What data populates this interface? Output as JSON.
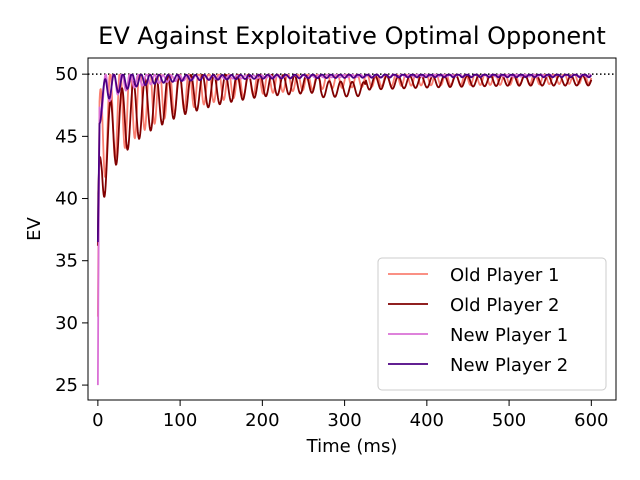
{
  "chart_data": {
    "type": "line",
    "title": "EV Against Exploitative Optimal Opponent",
    "xlabel": "Time (ms)",
    "ylabel": "EV",
    "xlim": [
      -12,
      630
    ],
    "ylim": [
      23.8,
      51.3
    ],
    "xticks": [
      0,
      100,
      200,
      300,
      400,
      500,
      600
    ],
    "yticks": [
      25,
      30,
      35,
      40,
      45,
      50
    ],
    "grid": false,
    "legend_position": "lower-right",
    "reference_line": {
      "y": 50,
      "style": "dotted",
      "color": "#000000"
    },
    "series": [
      {
        "name": "Old Player 1",
        "color": "#fa8072",
        "start": 30.5,
        "oscillation": {
          "period_ms": 12,
          "amplitude_start": 4.5,
          "amplitude_end": 0.45,
          "decay_ms": 90
        },
        "x": [
          0,
          2,
          5,
          10,
          20,
          40,
          60,
          100,
          150,
          200,
          300,
          400,
          500,
          600
        ],
        "y": [
          30.5,
          44.0,
          45.2,
          46.0,
          46.8,
          47.6,
          48.2,
          48.8,
          49.1,
          49.3,
          49.5,
          49.6,
          49.6,
          49.7
        ]
      },
      {
        "name": "Old Player 2",
        "color": "#800000",
        "start": 36.2,
        "oscillation": {
          "period_ms": 14,
          "amplitude_start": 3.5,
          "amplitude_end": 0.4,
          "decay_ms": 110
        },
        "x": [
          0,
          2,
          5,
          10,
          20,
          40,
          60,
          100,
          150,
          200,
          270,
          271,
          325,
          326,
          400,
          500,
          600
        ],
        "y": [
          36.2,
          40.0,
          42.5,
          44.0,
          45.5,
          46.8,
          47.5,
          48.3,
          48.8,
          49.1,
          49.2,
          48.8,
          48.8,
          49.3,
          49.4,
          49.5,
          49.5
        ]
      },
      {
        "name": "New Player 1",
        "color": "#da70d6",
        "start": 25.0,
        "oscillation": {
          "period_ms": 10,
          "amplitude_start": 1.6,
          "amplitude_end": 0.1,
          "decay_ms": 40
        },
        "x": [
          0,
          2,
          5,
          10,
          20,
          40,
          100,
          200,
          300,
          400,
          500,
          600
        ],
        "y": [
          25.0,
          47.5,
          48.3,
          48.8,
          49.2,
          49.5,
          49.7,
          49.8,
          49.85,
          49.9,
          49.9,
          49.9
        ]
      },
      {
        "name": "New Player 2",
        "color": "#4b0082",
        "start": 36.5,
        "oscillation": {
          "period_ms": 11,
          "amplitude_start": 1.2,
          "amplitude_end": 0.15,
          "decay_ms": 45
        },
        "x": [
          0,
          2,
          5,
          10,
          20,
          40,
          100,
          200,
          300,
          400,
          500,
          600
        ],
        "y": [
          36.5,
          47.0,
          48.0,
          48.8,
          49.2,
          49.5,
          49.7,
          49.8,
          49.85,
          49.9,
          49.9,
          49.9
        ]
      }
    ]
  }
}
